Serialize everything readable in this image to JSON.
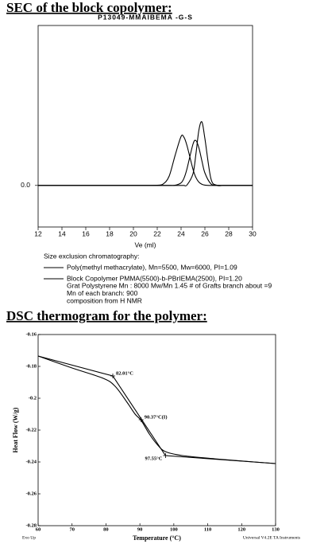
{
  "heading1": "SEC of the block copolymer:",
  "heading2": "DSC thermogram for the polymer:",
  "chart_data": [
    {
      "type": "line",
      "title": "P13049-MMAIBEMA -G-S",
      "x_label": "Ve (ml)",
      "x": [
        12,
        14,
        16,
        18,
        20,
        21,
        22,
        22.5,
        23,
        23.5,
        24,
        24.25,
        24.5,
        25,
        25.25,
        25.5,
        25.75,
        26,
        26.5,
        27,
        27.5,
        28,
        30
      ],
      "series": [
        {
          "name": "Poly(methyl methacrylate), Mn=5500, Mw=6000, PI=1.09",
          "color": "#000000",
          "values": [
            0,
            0,
            0,
            0,
            0,
            0,
            0,
            0,
            0,
            0,
            0,
            0,
            0.003,
            0.073,
            0.199,
            0.348,
            0.397,
            0.293,
            0.044,
            0.001,
            0,
            0,
            0
          ]
        },
        {
          "name": "Block Copolymer PMMA(5500)-b-PBrIEMA(2500),  PI=1.20",
          "color": "#000000",
          "values": [
            0,
            0,
            0,
            0,
            0,
            0,
            0,
            0,
            0,
            0.001,
            0.016,
            0.046,
            0.105,
            0.258,
            0.28,
            0.234,
            0.153,
            0.078,
            0.01,
            0.001,
            0,
            0,
            0
          ]
        },
        {
          "color": "#000000",
          "values": [
            0,
            0,
            0,
            0,
            0,
            0,
            0.001,
            0.009,
            0.058,
            0.188,
            0.306,
            0.3,
            0.248,
            0.101,
            0.049,
            0.02,
            0.007,
            0.002,
            0,
            0,
            0,
            0,
            0
          ]
        }
      ],
      "legend_title": "Size exclusion chromatography:",
      "notes": [
        "Grat Polystyrene Mn : 8000  Mw/Mn 1.45 # of Grafts branch about =9",
        "Mn of each branch: 900",
        "composition from H NMR"
      ],
      "xlim": [
        12,
        30
      ],
      "xticks": [
        12,
        14,
        16,
        18,
        20,
        22,
        24,
        26,
        28,
        30
      ],
      "ylim": [
        -0.26,
        1.0
      ],
      "yticks": [
        {
          "value": 0,
          "label": "0.0"
        }
      ]
    },
    {
      "type": "line",
      "x_label": "Temperature (°C)",
      "y_label": "Heat Flow (W/g)",
      "series": [
        {
          "color": "#000000",
          "x": [
            60,
            70,
            79.2,
            82.7,
            86.2,
            88.6,
            90.4,
            92.8,
            95.1,
            97.5,
            102.6,
            112,
            123.7,
            130
          ],
          "values": [
            -0.1735,
            -0.181,
            -0.1875,
            -0.1925,
            -0.2025,
            -0.21,
            -0.214,
            -0.2225,
            -0.229,
            -0.2335,
            -0.236,
            -0.238,
            -0.24,
            -0.241
          ]
        },
        {
          "color": "#000000",
          "x": [
            60,
            82.01,
            97.55,
            130
          ],
          "values": [
            -0.1735,
            -0.186,
            -0.236,
            -0.241
          ]
        }
      ],
      "annotations": [
        {
          "x": 82.01,
          "y": -0.186,
          "label": "82.01°C"
        },
        {
          "x": 90.37,
          "y": -0.2135,
          "label": "90.37°C(I)"
        },
        {
          "x": 97.55,
          "y": -0.236,
          "label": "97.55°C"
        }
      ],
      "footer_left": "Exo Up",
      "footer_right": "Universal V4.2E TA Instruments",
      "xlim": [
        60,
        130
      ],
      "xticks": [
        60,
        70,
        80,
        90,
        100,
        110,
        120,
        130
      ],
      "ylim": [
        -0.28,
        -0.16
      ],
      "yticks": [
        -0.28,
        -0.26,
        -0.24,
        -0.22,
        -0.2,
        -0.18,
        -0.16
      ]
    }
  ]
}
